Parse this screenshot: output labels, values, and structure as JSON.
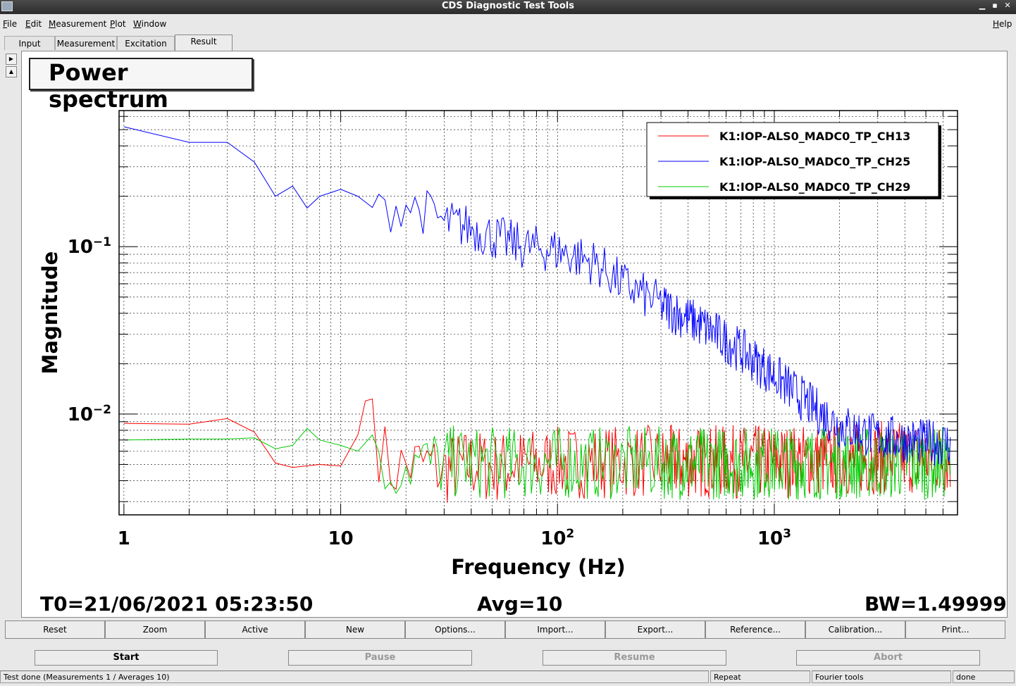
{
  "window": {
    "title": "CDS Diagnostic Test Tools"
  },
  "menu": {
    "file": "File",
    "edit": "Edit",
    "measurement": "Measurement",
    "plot": "Plot",
    "window": "Window",
    "help": "Help"
  },
  "tabs": [
    "Input",
    "Measurement",
    "Excitation",
    "Result"
  ],
  "plot": {
    "title": "Power spectrum",
    "t0": "T0=21/06/2021 05:23:50",
    "avg": "Avg=10",
    "bw": "BW=1.49999"
  },
  "chart_data": {
    "type": "line",
    "title": "Power spectrum",
    "xlabel": "Frequency (Hz)",
    "ylabel": "Magnitude",
    "xscale": "log",
    "yscale": "log",
    "xlim": [
      0.95,
      7000
    ],
    "ylim": [
      0.0025,
      0.65
    ],
    "x_tick_labels": [
      "1",
      "10",
      "10^2",
      "10^3"
    ],
    "y_tick_labels": [
      "10^-2",
      "10^-1"
    ],
    "grid": true,
    "legend_position": "top-right",
    "series": [
      {
        "name": "K1:IOP-ALS0_MADC0_TP_CH13",
        "color": "#ff0000",
        "x": [
          1,
          2,
          3,
          4,
          5,
          6,
          8,
          10,
          12,
          13,
          14,
          15,
          17,
          20,
          25,
          30,
          40,
          50,
          70,
          100,
          150,
          200,
          300,
          500,
          700,
          1000,
          1500,
          2000,
          3000,
          5000,
          6500
        ],
        "y": [
          0.0088,
          0.0087,
          0.0094,
          0.0078,
          0.0051,
          0.0048,
          0.005,
          0.0049,
          0.0075,
          0.012,
          0.0123,
          0.0065,
          0.0047,
          0.0049,
          0.005,
          0.0046,
          0.005,
          0.0048,
          0.005,
          0.0051,
          0.0052,
          0.0052,
          0.0052,
          0.0052,
          0.0052,
          0.0052,
          0.0053,
          0.0053,
          0.0055,
          0.0055,
          0.0055
        ]
      },
      {
        "name": "K1:IOP-ALS0_MADC0_TP_CH25",
        "color": "#0000ff",
        "x": [
          1,
          2,
          3,
          4,
          5,
          6,
          7,
          8,
          10,
          12,
          15,
          20,
          25,
          30,
          40,
          50,
          70,
          100,
          150,
          200,
          300,
          500,
          700,
          1000,
          1500,
          2000,
          3000,
          5000,
          6500
        ],
        "y": [
          0.52,
          0.42,
          0.42,
          0.32,
          0.2,
          0.23,
          0.17,
          0.2,
          0.22,
          0.2,
          0.16,
          0.18,
          0.16,
          0.14,
          0.13,
          0.115,
          0.1,
          0.095,
          0.08,
          0.06,
          0.045,
          0.032,
          0.024,
          0.017,
          0.011,
          0.0085,
          0.0073,
          0.0068,
          0.0067
        ]
      },
      {
        "name": "K1:IOP-ALS0_MADC0_TP_CH29",
        "color": "#00cc00",
        "x": [
          1,
          2,
          3,
          4,
          5,
          6,
          7,
          8,
          10,
          12,
          14,
          15,
          17,
          20,
          25,
          30,
          40,
          50,
          70,
          100,
          150,
          200,
          300,
          500,
          700,
          1000,
          1500,
          2000,
          3000,
          5000,
          6500
        ],
        "y": [
          0.007,
          0.0071,
          0.0071,
          0.0072,
          0.0062,
          0.0065,
          0.0082,
          0.007,
          0.0065,
          0.006,
          0.0075,
          0.0042,
          0.0048,
          0.0052,
          0.005,
          0.0052,
          0.0051,
          0.0051,
          0.0051,
          0.0051,
          0.0051,
          0.0051,
          0.0051,
          0.0051,
          0.0051,
          0.0051,
          0.0051,
          0.0051,
          0.0051,
          0.0051,
          0.0051
        ]
      }
    ]
  },
  "buttons": [
    "Reset",
    "Zoom",
    "Active",
    "New",
    "Options...",
    "Import...",
    "Export...",
    "Reference...",
    "Calibration...",
    "Print..."
  ],
  "controls": {
    "start": "Start",
    "pause": "Pause",
    "resume": "Resume",
    "abort": "Abort"
  },
  "status": {
    "message": "Test done (Measurements 1 / Averages 10)",
    "repeat": "Repeat",
    "fourier": "Fourier tools",
    "state": "done"
  }
}
